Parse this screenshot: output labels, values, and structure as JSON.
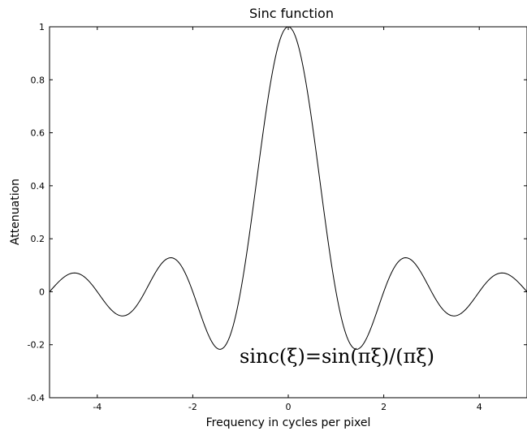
{
  "chart_data": {
    "type": "line",
    "title": "Sinc function",
    "xlabel": "Frequency in cycles per pixel",
    "ylabel": "Attenuation",
    "annotation": "sinc(ξ)=sin(πξ)/(πξ)",
    "xlim": [
      -5,
      5
    ],
    "ylim": [
      -0.4,
      1
    ],
    "xticks": [
      -4,
      -2,
      0,
      2,
      4
    ],
    "xtick_labels": [
      "-4",
      "-2",
      "0",
      "2",
      "4"
    ],
    "yticks": [
      -0.4,
      -0.2,
      0,
      0.2,
      0.4,
      0.6,
      0.8,
      1
    ],
    "ytick_labels": [
      "-0.4",
      "-0.2",
      "0",
      "0.2",
      "0.4",
      "0.6",
      "0.8",
      "1"
    ],
    "grid": false,
    "series": [
      {
        "function": "sin(pi*x)/(pi*x)",
        "color": "#000000",
        "x": [
          -5,
          -4.5,
          -4,
          -3.5,
          -3,
          -2.5,
          -2,
          -1.5,
          -1,
          -0.5,
          0,
          0.5,
          1,
          1.5,
          2,
          2.5,
          3,
          3.5,
          4,
          4.5,
          5
        ],
        "y": [
          0,
          0.0707,
          0,
          -0.0909,
          0,
          0.1273,
          0,
          -0.2122,
          0,
          0.6366,
          1,
          0.6366,
          0,
          -0.2122,
          0,
          0.1273,
          0,
          -0.0909,
          0,
          0.0707,
          0
        ]
      }
    ]
  }
}
